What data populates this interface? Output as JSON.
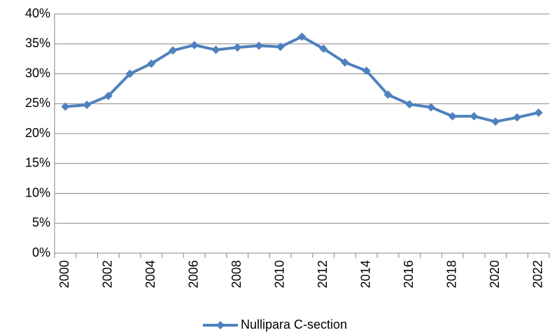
{
  "chart_data": {
    "type": "line",
    "categories": [
      "2000",
      null,
      "2002",
      null,
      "2004",
      null,
      "2006",
      null,
      "2008",
      null,
      "2010",
      null,
      "2012",
      null,
      "2014",
      null,
      "2016",
      null,
      "2018",
      null,
      "2020",
      null,
      "2022"
    ],
    "series": [
      {
        "name": "Nullipara C-section",
        "color": "#4f81bd",
        "values": [
          24.5,
          24.8,
          26.3,
          30.0,
          31.7,
          33.9,
          34.8,
          34.0,
          34.4,
          34.7,
          34.5,
          36.2,
          34.2,
          31.9,
          30.5,
          26.5,
          24.9,
          24.4,
          22.9,
          22.9,
          22.0,
          22.7,
          23.5
        ]
      }
    ],
    "ylim": [
      0,
      40
    ],
    "yticks": [
      {
        "value": 0,
        "label": "0%"
      },
      {
        "value": 5,
        "label": "5%"
      },
      {
        "value": 10,
        "label": "10%"
      },
      {
        "value": 15,
        "label": "15%"
      },
      {
        "value": 20,
        "label": "20%"
      },
      {
        "value": 25,
        "label": "25%"
      },
      {
        "value": 30,
        "label": "30%"
      },
      {
        "value": 35,
        "label": "35%"
      },
      {
        "value": 40,
        "label": "40%"
      }
    ],
    "grid": true,
    "legend": "bottom"
  }
}
